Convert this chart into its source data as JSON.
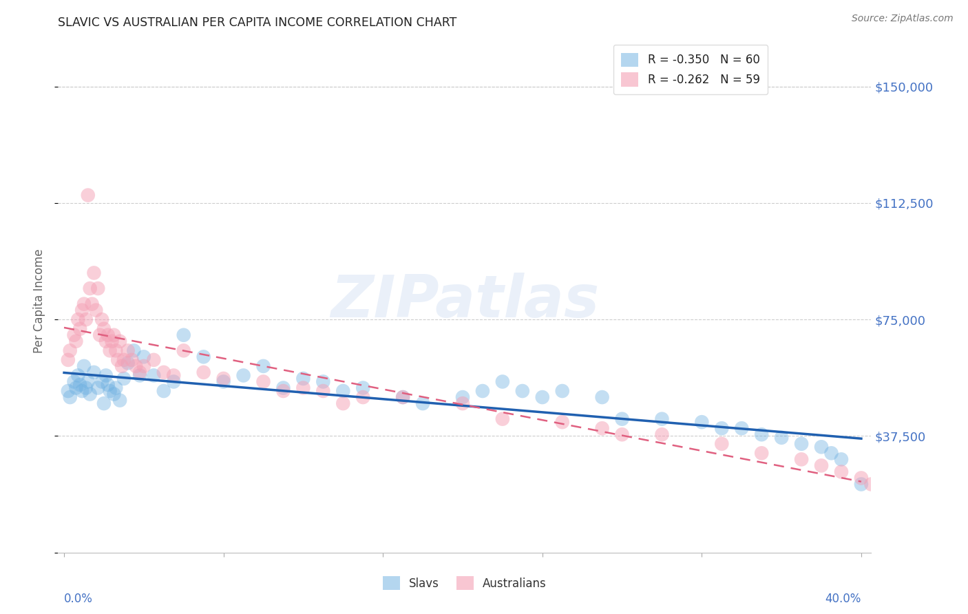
{
  "title": "SLAVIC VS AUSTRALIAN PER CAPITA INCOME CORRELATION CHART",
  "source": "Source: ZipAtlas.com",
  "ylabel": "Per Capita Income",
  "yticks": [
    0,
    37500,
    75000,
    112500,
    150000
  ],
  "ytick_labels": [
    "",
    "$37,500",
    "$75,000",
    "$112,500",
    "$150,000"
  ],
  "xlim": [
    0.0,
    40.0
  ],
  "ylim": [
    0,
    162000
  ],
  "watermark_text": "ZIPatlas",
  "slav_color": "#6aaee0",
  "australian_color": "#f4a0b5",
  "slav_line_color": "#2060b0",
  "australian_line_color": "#e06080",
  "title_color": "#222222",
  "axis_label_color": "#666666",
  "ytick_color": "#4472c4",
  "source_color": "#777777",
  "grid_color": "#cccccc",
  "background_color": "#ffffff",
  "legend_r1": "R = -0.350",
  "legend_n1": "N = 60",
  "legend_r2": "R = -0.262",
  "legend_n2": "N = 59",
  "slavs_x": [
    0.2,
    0.3,
    0.5,
    0.6,
    0.7,
    0.8,
    0.9,
    1.0,
    1.1,
    1.2,
    1.3,
    1.5,
    1.7,
    1.9,
    2.0,
    2.1,
    2.2,
    2.3,
    2.5,
    2.6,
    2.8,
    3.0,
    3.2,
    3.5,
    3.8,
    4.0,
    4.5,
    5.0,
    5.5,
    6.0,
    7.0,
    8.0,
    9.0,
    10.0,
    11.0,
    12.0,
    13.0,
    14.0,
    15.0,
    17.0,
    18.0,
    20.0,
    21.0,
    22.0,
    23.0,
    24.0,
    25.0,
    27.0,
    28.0,
    30.0,
    32.0,
    33.0,
    34.0,
    35.0,
    36.0,
    37.0,
    38.0,
    38.5,
    39.0,
    40.0
  ],
  "slavs_y": [
    52000,
    50000,
    55000,
    53000,
    57000,
    54000,
    52000,
    60000,
    53000,
    55000,
    51000,
    58000,
    53000,
    55000,
    48000,
    57000,
    54000,
    52000,
    51000,
    53000,
    49000,
    56000,
    61000,
    65000,
    57000,
    63000,
    57000,
    52000,
    55000,
    70000,
    63000,
    55000,
    57000,
    60000,
    53000,
    56000,
    55000,
    52000,
    53000,
    50000,
    48000,
    50000,
    52000,
    55000,
    52000,
    50000,
    52000,
    50000,
    43000,
    43000,
    42000,
    40000,
    40000,
    38000,
    37000,
    35000,
    34000,
    32000,
    30000,
    22000
  ],
  "aus_x": [
    0.2,
    0.3,
    0.5,
    0.6,
    0.7,
    0.8,
    0.9,
    1.0,
    1.1,
    1.2,
    1.3,
    1.4,
    1.5,
    1.6,
    1.7,
    1.8,
    1.9,
    2.0,
    2.1,
    2.2,
    2.3,
    2.4,
    2.5,
    2.6,
    2.7,
    2.8,
    2.9,
    3.0,
    3.2,
    3.4,
    3.6,
    3.8,
    4.0,
    4.5,
    5.0,
    5.5,
    6.0,
    7.0,
    8.0,
    10.0,
    11.0,
    12.0,
    13.0,
    14.0,
    15.0,
    17.0,
    20.0,
    22.0,
    25.0,
    27.0,
    28.0,
    30.0,
    33.0,
    35.0,
    37.0,
    38.0,
    39.0,
    40.0,
    40.5
  ],
  "aus_y": [
    62000,
    65000,
    70000,
    68000,
    75000,
    72000,
    78000,
    80000,
    75000,
    115000,
    85000,
    80000,
    90000,
    78000,
    85000,
    70000,
    75000,
    72000,
    68000,
    70000,
    65000,
    68000,
    70000,
    65000,
    62000,
    68000,
    60000,
    62000,
    65000,
    62000,
    60000,
    58000,
    60000,
    62000,
    58000,
    57000,
    65000,
    58000,
    56000,
    55000,
    52000,
    53000,
    52000,
    48000,
    50000,
    50000,
    48000,
    43000,
    42000,
    40000,
    38000,
    38000,
    35000,
    32000,
    30000,
    28000,
    26000,
    24000,
    22000
  ]
}
